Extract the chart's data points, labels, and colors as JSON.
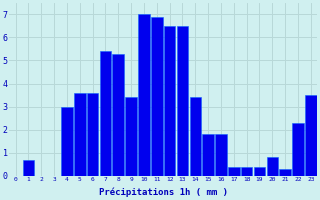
{
  "hours": [
    0,
    1,
    2,
    3,
    4,
    5,
    6,
    7,
    8,
    9,
    10,
    11,
    12,
    13,
    14,
    15,
    16,
    17,
    18,
    19,
    20,
    21,
    22,
    23
  ],
  "values": [
    0,
    0.7,
    0,
    0,
    3.0,
    3.6,
    3.6,
    5.4,
    5.3,
    3.4,
    7.0,
    6.9,
    6.5,
    6.5,
    3.4,
    1.8,
    1.8,
    0.4,
    0.4,
    0.4,
    0.8,
    0.3,
    2.3,
    3.5
  ],
  "bar_color": "#0000ee",
  "bar_edge_color": "#1166ff",
  "background_color": "#d0f0f0",
  "grid_color": "#b8d8d8",
  "xlabel": "Précipitations 1h ( mm )",
  "xlabel_color": "#0000bb",
  "tick_color": "#0000bb",
  "ylim": [
    0,
    7.5
  ],
  "yticks": [
    0,
    1,
    2,
    3,
    4,
    5,
    6,
    7
  ]
}
